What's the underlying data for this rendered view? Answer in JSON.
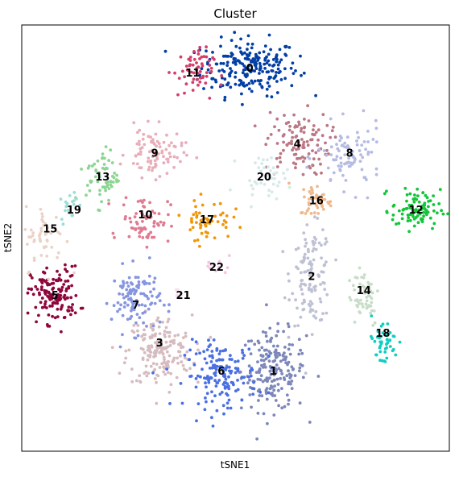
{
  "chart_data": {
    "type": "scatter",
    "title": "Cluster",
    "xlabel": "tSNE1",
    "ylabel": "tSNE2",
    "xlim": [
      -45,
      45
    ],
    "ylim": [
      -45,
      45
    ],
    "grid": false,
    "legend": "none",
    "ticks": "none",
    "clusters": [
      {
        "id": "0",
        "color": "#023fa5",
        "center": [
          3,
          36
        ],
        "spread": [
          6,
          3.5
        ],
        "n": 220
      },
      {
        "id": "1",
        "color": "#7d87b9",
        "center": [
          8,
          -28
        ],
        "spread": [
          4,
          5
        ],
        "n": 190
      },
      {
        "id": "2",
        "color": "#bec1d4",
        "center": [
          16,
          -8
        ],
        "spread": [
          2.5,
          6
        ],
        "n": 120
      },
      {
        "id": "3",
        "color": "#d6bcc0",
        "center": [
          -16,
          -24
        ],
        "spread": [
          4,
          4.5
        ],
        "n": 180
      },
      {
        "id": "4",
        "color": "#bb7784",
        "center": [
          13,
          20
        ],
        "spread": [
          4,
          4
        ],
        "n": 110
      },
      {
        "id": "5",
        "color": "#8e063b",
        "center": [
          -38,
          -12
        ],
        "spread": [
          3,
          3.5
        ],
        "n": 140
      },
      {
        "id": "6",
        "color": "#4a6fe3",
        "center": [
          -3,
          -29
        ],
        "spread": [
          4.5,
          4
        ],
        "n": 160
      },
      {
        "id": "7",
        "color": "#8595e1",
        "center": [
          -21,
          -13
        ],
        "spread": [
          3,
          4
        ],
        "n": 110
      },
      {
        "id": "8",
        "color": "#b5bbe3",
        "center": [
          24,
          17
        ],
        "spread": [
          4,
          4
        ],
        "n": 90
      },
      {
        "id": "9",
        "color": "#e6afb9",
        "center": [
          -17,
          18
        ],
        "spread": [
          3.5,
          3
        ],
        "n": 90
      },
      {
        "id": "10",
        "color": "#e07b91",
        "center": [
          -19,
          4
        ],
        "spread": [
          3,
          3
        ],
        "n": 70
      },
      {
        "id": "11",
        "color": "#d33f6a",
        "center": [
          -9,
          35
        ],
        "spread": [
          2.5,
          3
        ],
        "n": 60
      },
      {
        "id": "12",
        "color": "#11c638",
        "center": [
          38,
          6
        ],
        "spread": [
          3,
          2.5
        ],
        "n": 90
      },
      {
        "id": "13",
        "color": "#8dd593",
        "center": [
          -28,
          13
        ],
        "spread": [
          2,
          3.5
        ],
        "n": 60
      },
      {
        "id": "14",
        "color": "#c6dec7",
        "center": [
          27,
          -12
        ],
        "spread": [
          2,
          4
        ],
        "n": 55
      },
      {
        "id": "15",
        "color": "#ead3c6",
        "center": [
          -40,
          0
        ],
        "spread": [
          2.5,
          4
        ],
        "n": 50
      },
      {
        "id": "16",
        "color": "#f0b98d",
        "center": [
          17,
          8
        ],
        "spread": [
          2,
          2
        ],
        "n": 50
      },
      {
        "id": "17",
        "color": "#ef9708",
        "center": [
          -6,
          4
        ],
        "spread": [
          3,
          2.5
        ],
        "n": 55
      },
      {
        "id": "18",
        "color": "#0fcfc0",
        "center": [
          31,
          -22
        ],
        "spread": [
          2,
          3
        ],
        "n": 45
      },
      {
        "id": "19",
        "color": "#9cded6",
        "center": [
          -35,
          7
        ],
        "spread": [
          1,
          2
        ],
        "n": 18
      },
      {
        "id": "20",
        "color": "#d5eae7",
        "center": [
          6,
          13
        ],
        "spread": [
          3,
          2.5
        ],
        "n": 40
      },
      {
        "id": "21",
        "color": "#f3e1eb",
        "center": [
          -11,
          -12
        ],
        "spread": [
          1,
          1
        ],
        "n": 6
      },
      {
        "id": "22",
        "color": "#f6c4e1",
        "center": [
          -4,
          -6
        ],
        "spread": [
          2,
          1
        ],
        "n": 10
      }
    ],
    "labels": [
      {
        "text": "0",
        "pos": [
          3,
          36
        ]
      },
      {
        "text": "1",
        "pos": [
          8,
          -28
        ]
      },
      {
        "text": "2",
        "pos": [
          16,
          -8
        ]
      },
      {
        "text": "3",
        "pos": [
          -16,
          -22
        ]
      },
      {
        "text": "4",
        "pos": [
          13,
          20
        ]
      },
      {
        "text": "5",
        "pos": [
          -38,
          -12
        ]
      },
      {
        "text": "6",
        "pos": [
          -3,
          -28
        ]
      },
      {
        "text": "7",
        "pos": [
          -21,
          -14
        ]
      },
      {
        "text": "8",
        "pos": [
          24,
          18
        ]
      },
      {
        "text": "9",
        "pos": [
          -17,
          18
        ]
      },
      {
        "text": "10",
        "pos": [
          -19,
          5
        ]
      },
      {
        "text": "11",
        "pos": [
          -9,
          35
        ]
      },
      {
        "text": "12",
        "pos": [
          38,
          6
        ]
      },
      {
        "text": "13",
        "pos": [
          -28,
          13
        ]
      },
      {
        "text": "14",
        "pos": [
          27,
          -11
        ]
      },
      {
        "text": "15",
        "pos": [
          -39,
          2
        ]
      },
      {
        "text": "16",
        "pos": [
          17,
          8
        ]
      },
      {
        "text": "17",
        "pos": [
          -6,
          4
        ]
      },
      {
        "text": "18",
        "pos": [
          31,
          -20
        ]
      },
      {
        "text": "19",
        "pos": [
          -34,
          6
        ]
      },
      {
        "text": "20",
        "pos": [
          6,
          13
        ]
      },
      {
        "text": "21",
        "pos": [
          -11,
          -12
        ]
      },
      {
        "text": "22",
        "pos": [
          -4,
          -6
        ]
      }
    ]
  }
}
